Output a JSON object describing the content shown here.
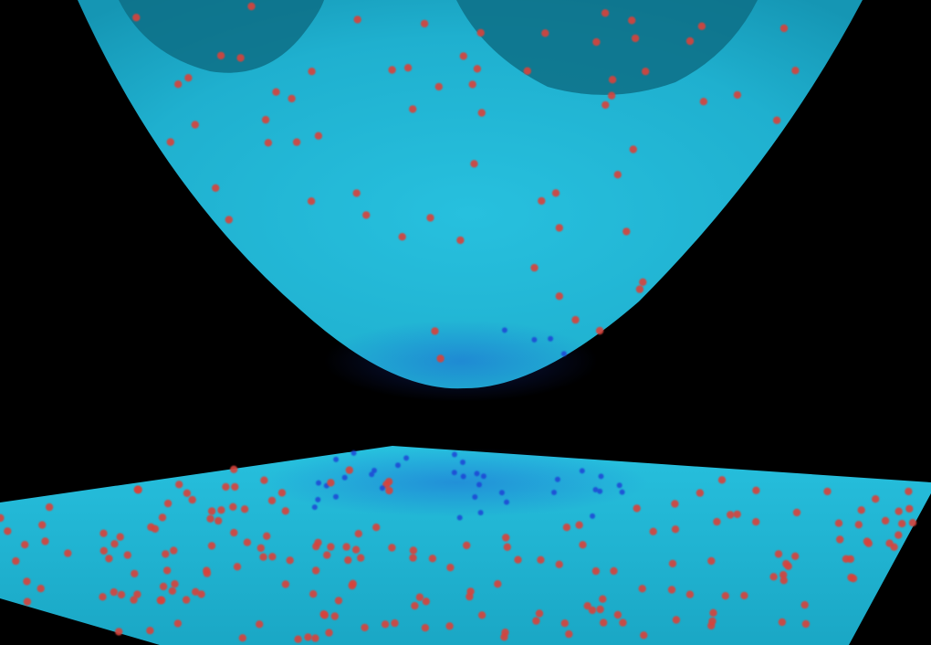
{
  "scene": {
    "background_color": "#000000",
    "surface_color": "#1fb0cf",
    "surface_shadow_color": "#0d6f86",
    "particle_colors": {
      "high": "#d8433a",
      "low": "#1c3fd6"
    },
    "objects": [
      "curved-bowl-surface",
      "flat-plane-surface"
    ],
    "particles_shown": true
  }
}
